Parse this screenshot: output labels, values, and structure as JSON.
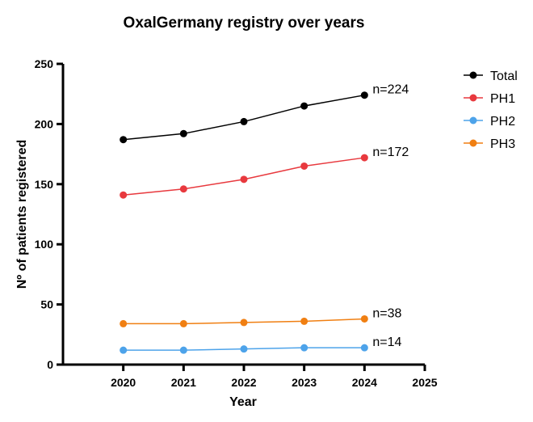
{
  "chart_data": {
    "type": "line",
    "title": "OxalGermany registry over years",
    "xlabel": "Year",
    "ylabel": "Nº of patients registered",
    "x": [
      2020,
      2021,
      2022,
      2023,
      2024
    ],
    "xticks": [
      2020,
      2021,
      2022,
      2023,
      2024,
      2025
    ],
    "xlim": [
      2019,
      2025
    ],
    "ylim": [
      0,
      250
    ],
    "yticks": [
      0,
      50,
      100,
      150,
      200,
      250
    ],
    "grid": false,
    "legend": "right",
    "series": [
      {
        "name": "Total",
        "color": "#000000",
        "values": [
          187,
          192,
          202,
          215,
          224
        ],
        "annotation": "n=224"
      },
      {
        "name": "PH1",
        "color": "#e8393e",
        "values": [
          141,
          146,
          154,
          165,
          172
        ],
        "annotation": "n=172"
      },
      {
        "name": "PH2",
        "color": "#4da3ea",
        "values": [
          12,
          12,
          13,
          14,
          14
        ],
        "annotation": "n=14"
      },
      {
        "name": "PH3",
        "color": "#f07f12",
        "values": [
          34,
          34,
          35,
          36,
          38
        ],
        "annotation": "n=38"
      }
    ]
  }
}
